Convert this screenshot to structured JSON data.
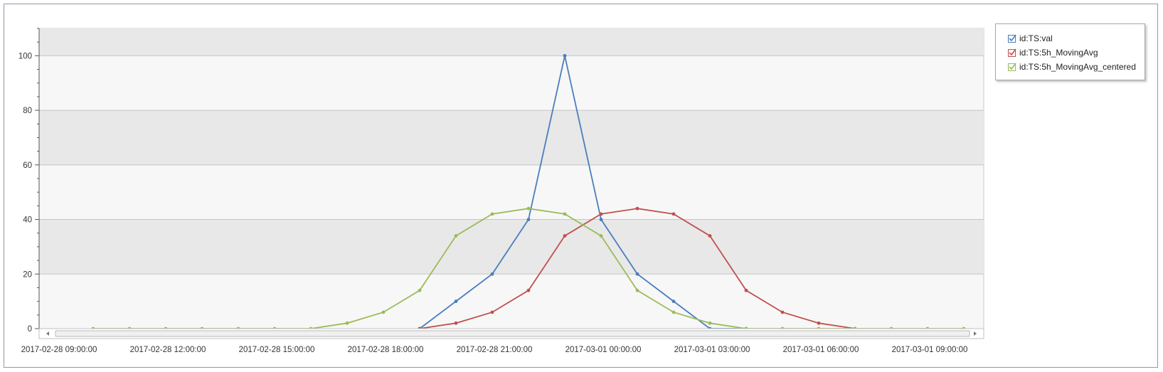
{
  "chart_data": {
    "type": "line",
    "x_start": "2017-02-28 09:00:00",
    "x_ticks": [
      "2017-02-28 09:00:00",
      "2017-02-28 12:00:00",
      "2017-02-28 15:00:00",
      "2017-02-28 18:00:00",
      "2017-02-28 21:00:00",
      "2017-03-01 00:00:00",
      "2017-03-01 03:00:00",
      "2017-03-01 06:00:00",
      "2017-03-01 09:00:00"
    ],
    "y_ticks": [
      0,
      20,
      40,
      60,
      80,
      100
    ],
    "ylim": [
      0,
      110
    ],
    "xlim": [
      "2017-02-28 09:00:00",
      "2017-03-01 11:00:00"
    ],
    "grid": "horizontal alternating bands",
    "legend_position": "top-right",
    "series": [
      {
        "name": "id:TS:val",
        "color": "#4a7ebb",
        "points": [
          [
            "2017-02-28 19:00:00",
            0
          ],
          [
            "2017-02-28 20:00:00",
            10
          ],
          [
            "2017-02-28 21:00:00",
            20
          ],
          [
            "2017-02-28 22:00:00",
            40
          ],
          [
            "2017-02-28 23:00:00",
            100
          ],
          [
            "2017-03-01 00:00:00",
            40
          ],
          [
            "2017-03-01 01:00:00",
            20
          ],
          [
            "2017-03-01 02:00:00",
            10
          ],
          [
            "2017-03-01 03:00:00",
            0
          ],
          [
            "2017-03-01 04:00:00",
            0
          ]
        ]
      },
      {
        "name": "id:TS:5h_MovingAvg",
        "color": "#c0504d",
        "points": [
          [
            "2017-02-28 19:00:00",
            0
          ],
          [
            "2017-02-28 20:00:00",
            2
          ],
          [
            "2017-02-28 21:00:00",
            6
          ],
          [
            "2017-02-28 22:00:00",
            14
          ],
          [
            "2017-02-28 23:00:00",
            34
          ],
          [
            "2017-03-01 00:00:00",
            42
          ],
          [
            "2017-03-01 01:00:00",
            44
          ],
          [
            "2017-03-01 02:00:00",
            42
          ],
          [
            "2017-03-01 03:00:00",
            34
          ],
          [
            "2017-03-01 04:00:00",
            14
          ],
          [
            "2017-03-01 05:00:00",
            6
          ],
          [
            "2017-03-01 06:00:00",
            2
          ],
          [
            "2017-03-01 07:00:00",
            0
          ]
        ]
      },
      {
        "name": "id:TS:5h_MovingAvg_centered",
        "color": "#9bbb59",
        "points": [
          [
            "2017-02-28 10:00:00",
            0
          ],
          [
            "2017-02-28 11:00:00",
            0
          ],
          [
            "2017-02-28 12:00:00",
            0
          ],
          [
            "2017-02-28 13:00:00",
            0
          ],
          [
            "2017-02-28 14:00:00",
            0
          ],
          [
            "2017-02-28 15:00:00",
            0
          ],
          [
            "2017-02-28 16:00:00",
            0
          ],
          [
            "2017-02-28 17:00:00",
            2
          ],
          [
            "2017-02-28 18:00:00",
            6
          ],
          [
            "2017-02-28 19:00:00",
            14
          ],
          [
            "2017-02-28 20:00:00",
            34
          ],
          [
            "2017-02-28 21:00:00",
            42
          ],
          [
            "2017-02-28 22:00:00",
            44
          ],
          [
            "2017-02-28 23:00:00",
            42
          ],
          [
            "2017-03-01 00:00:00",
            34
          ],
          [
            "2017-03-01 01:00:00",
            14
          ],
          [
            "2017-03-01 02:00:00",
            6
          ],
          [
            "2017-03-01 03:00:00",
            2
          ],
          [
            "2017-03-01 04:00:00",
            0
          ],
          [
            "2017-03-01 05:00:00",
            0
          ],
          [
            "2017-03-01 06:00:00",
            0
          ],
          [
            "2017-03-01 07:00:00",
            0
          ],
          [
            "2017-03-01 08:00:00",
            0
          ],
          [
            "2017-03-01 09:00:00",
            0
          ],
          [
            "2017-03-01 10:00:00",
            0
          ]
        ]
      }
    ]
  },
  "legend": {
    "items": [
      {
        "label": "id:TS:val",
        "color": "#4a7ebb",
        "checked": true
      },
      {
        "label": "id:TS:5h_MovingAvg",
        "color": "#c0504d",
        "checked": true
      },
      {
        "label": "id:TS:5h_MovingAvg_centered",
        "color": "#9bbb59",
        "checked": true
      }
    ]
  },
  "scrollbar": {
    "left_icon": "arrow-left-icon",
    "right_icon": "arrow-right-icon"
  }
}
